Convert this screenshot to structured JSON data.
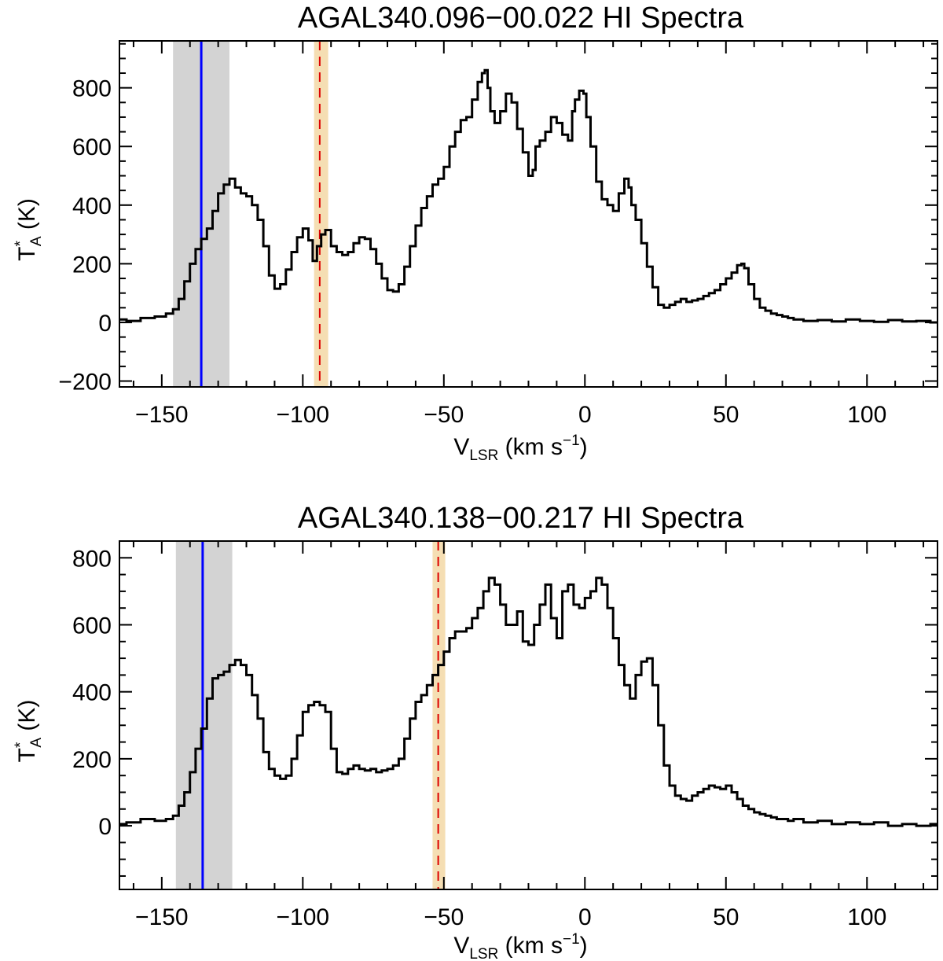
{
  "chart_data": [
    {
      "type": "line",
      "style": "step",
      "title": "AGAL340.096−00.022  HI Spectra",
      "xlabel": {
        "main": "V",
        "sub": "LSR",
        "rest": " (km s",
        "sup": "−1",
        "end": ")"
      },
      "ylabel": {
        "main": "T",
        "sup": "*",
        "sub": "A",
        "rest": " (K)"
      },
      "xlim": [
        -165,
        125
      ],
      "ylim": [
        -220,
        960
      ],
      "xticks": [
        -150,
        -100,
        -50,
        0,
        50,
        100
      ],
      "xtick_labels": [
        "−150",
        "−100",
        "−50",
        "0",
        "50",
        "100"
      ],
      "yticks": [
        -200,
        0,
        200,
        400,
        600,
        800
      ],
      "ytick_labels": [
        "−200",
        "0",
        "200",
        "400",
        "600",
        "800"
      ],
      "shaded_gray": [
        -146,
        -126
      ],
      "blue_line": -136,
      "shaded_orange": [
        -96,
        -91
      ],
      "red_dashed": -94,
      "colors": {
        "gray": "#d3d3d3",
        "orange": "#f5deb3",
        "blue": "#0000ff",
        "red": "#dd0000",
        "line": "#000000"
      },
      "spectrum": {
        "x": [
          -165,
          -160,
          -155,
          -150,
          -147,
          -145,
          -143,
          -141,
          -139,
          -137,
          -135,
          -133,
          -131,
          -129,
          -127,
          -125,
          -123,
          -121,
          -119,
          -117,
          -115,
          -113,
          -111,
          -109,
          -107,
          -105,
          -103,
          -101,
          -99,
          -97,
          -96,
          -94,
          -93,
          -91,
          -89,
          -87,
          -85,
          -83,
          -81,
          -79,
          -77,
          -75,
          -73,
          -71,
          -69,
          -67,
          -65,
          -63,
          -61,
          -59,
          -57,
          -55,
          -53,
          -51,
          -49,
          -47,
          -45,
          -43,
          -41,
          -39,
          -37,
          -36,
          -35,
          -34,
          -33,
          -31,
          -29,
          -27,
          -25,
          -23,
          -21,
          -19,
          -18,
          -17,
          -15,
          -13,
          -11,
          -9,
          -7,
          -5,
          -4,
          -3,
          -1,
          0,
          1,
          3,
          5,
          7,
          9,
          11,
          13,
          15,
          16,
          17,
          19,
          21,
          23,
          25,
          27,
          29,
          31,
          33,
          35,
          37,
          39,
          41,
          43,
          45,
          47,
          49,
          51,
          53,
          55,
          56,
          57,
          59,
          61,
          63,
          65,
          67,
          69,
          71,
          73,
          75,
          80,
          85,
          90,
          95,
          100,
          105,
          110,
          115,
          120,
          125
        ],
        "y": [
          10,
          5,
          15,
          20,
          30,
          45,
          80,
          140,
          200,
          250,
          285,
          320,
          380,
          440,
          470,
          490,
          460,
          440,
          430,
          400,
          350,
          260,
          160,
          115,
          130,
          180,
          240,
          290,
          320,
          280,
          210,
          260,
          300,
          315,
          260,
          240,
          230,
          240,
          270,
          290,
          285,
          250,
          200,
          150,
          110,
          105,
          130,
          190,
          260,
          330,
          390,
          430,
          470,
          490,
          530,
          600,
          650,
          690,
          700,
          760,
          820,
          850,
          860,
          800,
          720,
          680,
          720,
          780,
          750,
          660,
          580,
          500,
          520,
          600,
          620,
          650,
          700,
          680,
          640,
          620,
          720,
          760,
          790,
          780,
          700,
          600,
          480,
          420,
          400,
          380,
          440,
          490,
          460,
          400,
          350,
          270,
          190,
          120,
          60,
          50,
          60,
          70,
          80,
          70,
          75,
          80,
          90,
          100,
          110,
          130,
          150,
          170,
          195,
          200,
          185,
          130,
          80,
          50,
          40,
          30,
          25,
          20,
          15,
          10,
          5,
          8,
          3,
          10,
          5,
          2,
          8,
          3,
          5,
          0
        ]
      }
    },
    {
      "type": "line",
      "style": "step",
      "title": "AGAL340.138−00.217  HI Spectra",
      "xlabel": {
        "main": "V",
        "sub": "LSR",
        "rest": " (km s",
        "sup": "−1",
        "end": ")"
      },
      "ylabel": {
        "main": "T",
        "sup": "*",
        "sub": "A",
        "rest": " (K)"
      },
      "xlim": [
        -165,
        125
      ],
      "ylim": [
        -190,
        850
      ],
      "xticks": [
        -150,
        -100,
        -50,
        0,
        50,
        100
      ],
      "xtick_labels": [
        "−150",
        "−100",
        "−50",
        "0",
        "50",
        "100"
      ],
      "yticks": [
        0,
        200,
        400,
        600,
        800
      ],
      "ytick_labels": [
        "0",
        "200",
        "400",
        "600",
        "800"
      ],
      "shaded_gray": [
        -145,
        -125
      ],
      "blue_line": -135.5,
      "shaded_orange": [
        -54,
        -49.5
      ],
      "red_dashed": -52,
      "colors": {
        "gray": "#d3d3d3",
        "orange": "#f5deb3",
        "blue": "#0000ff",
        "red": "#dd0000",
        "line": "#000000"
      },
      "spectrum": {
        "x": [
          -165,
          -160,
          -155,
          -150,
          -147,
          -145,
          -143,
          -141,
          -139,
          -137,
          -135,
          -133,
          -131,
          -129,
          -127,
          -125,
          -123,
          -121,
          -119,
          -117,
          -115,
          -113,
          -111,
          -109,
          -107,
          -105,
          -103,
          -101,
          -99,
          -97,
          -95,
          -93,
          -91,
          -89,
          -87,
          -85,
          -83,
          -81,
          -79,
          -77,
          -75,
          -73,
          -71,
          -69,
          -67,
          -65,
          -63,
          -61,
          -59,
          -57,
          -55,
          -53,
          -51,
          -49,
          -47,
          -45,
          -43,
          -41,
          -39,
          -37,
          -35,
          -33,
          -31,
          -29,
          -27,
          -25,
          -23,
          -21,
          -19,
          -17,
          -15,
          -13,
          -11,
          -9,
          -7,
          -5,
          -3,
          -1,
          1,
          3,
          5,
          7,
          9,
          11,
          13,
          15,
          17,
          19,
          21,
          23,
          25,
          27,
          29,
          31,
          33,
          35,
          37,
          39,
          41,
          43,
          45,
          47,
          49,
          51,
          53,
          55,
          57,
          59,
          61,
          63,
          65,
          67,
          69,
          71,
          73,
          75,
          80,
          85,
          90,
          95,
          100,
          105,
          110,
          115,
          120,
          125
        ],
        "y": [
          5,
          10,
          20,
          15,
          20,
          30,
          60,
          100,
          160,
          230,
          290,
          380,
          440,
          450,
          460,
          480,
          495,
          480,
          450,
          390,
          320,
          220,
          170,
          150,
          140,
          150,
          200,
          270,
          340,
          360,
          370,
          360,
          340,
          230,
          160,
          155,
          170,
          180,
          170,
          165,
          170,
          160,
          165,
          170,
          180,
          200,
          260,
          320,
          370,
          390,
          420,
          450,
          480,
          520,
          560,
          580,
          580,
          590,
          620,
          650,
          700,
          740,
          720,
          660,
          600,
          600,
          640,
          550,
          540,
          600,
          660,
          720,
          620,
          560,
          700,
          720,
          660,
          650,
          680,
          700,
          740,
          720,
          650,
          560,
          480,
          420,
          380,
          450,
          490,
          500,
          420,
          300,
          180,
          120,
          90,
          80,
          75,
          90,
          100,
          110,
          120,
          115,
          110,
          120,
          100,
          80,
          60,
          50,
          40,
          35,
          30,
          25,
          20,
          20,
          15,
          20,
          10,
          15,
          5,
          10,
          5,
          10,
          0,
          5,
          0,
          5
        ]
      }
    }
  ]
}
